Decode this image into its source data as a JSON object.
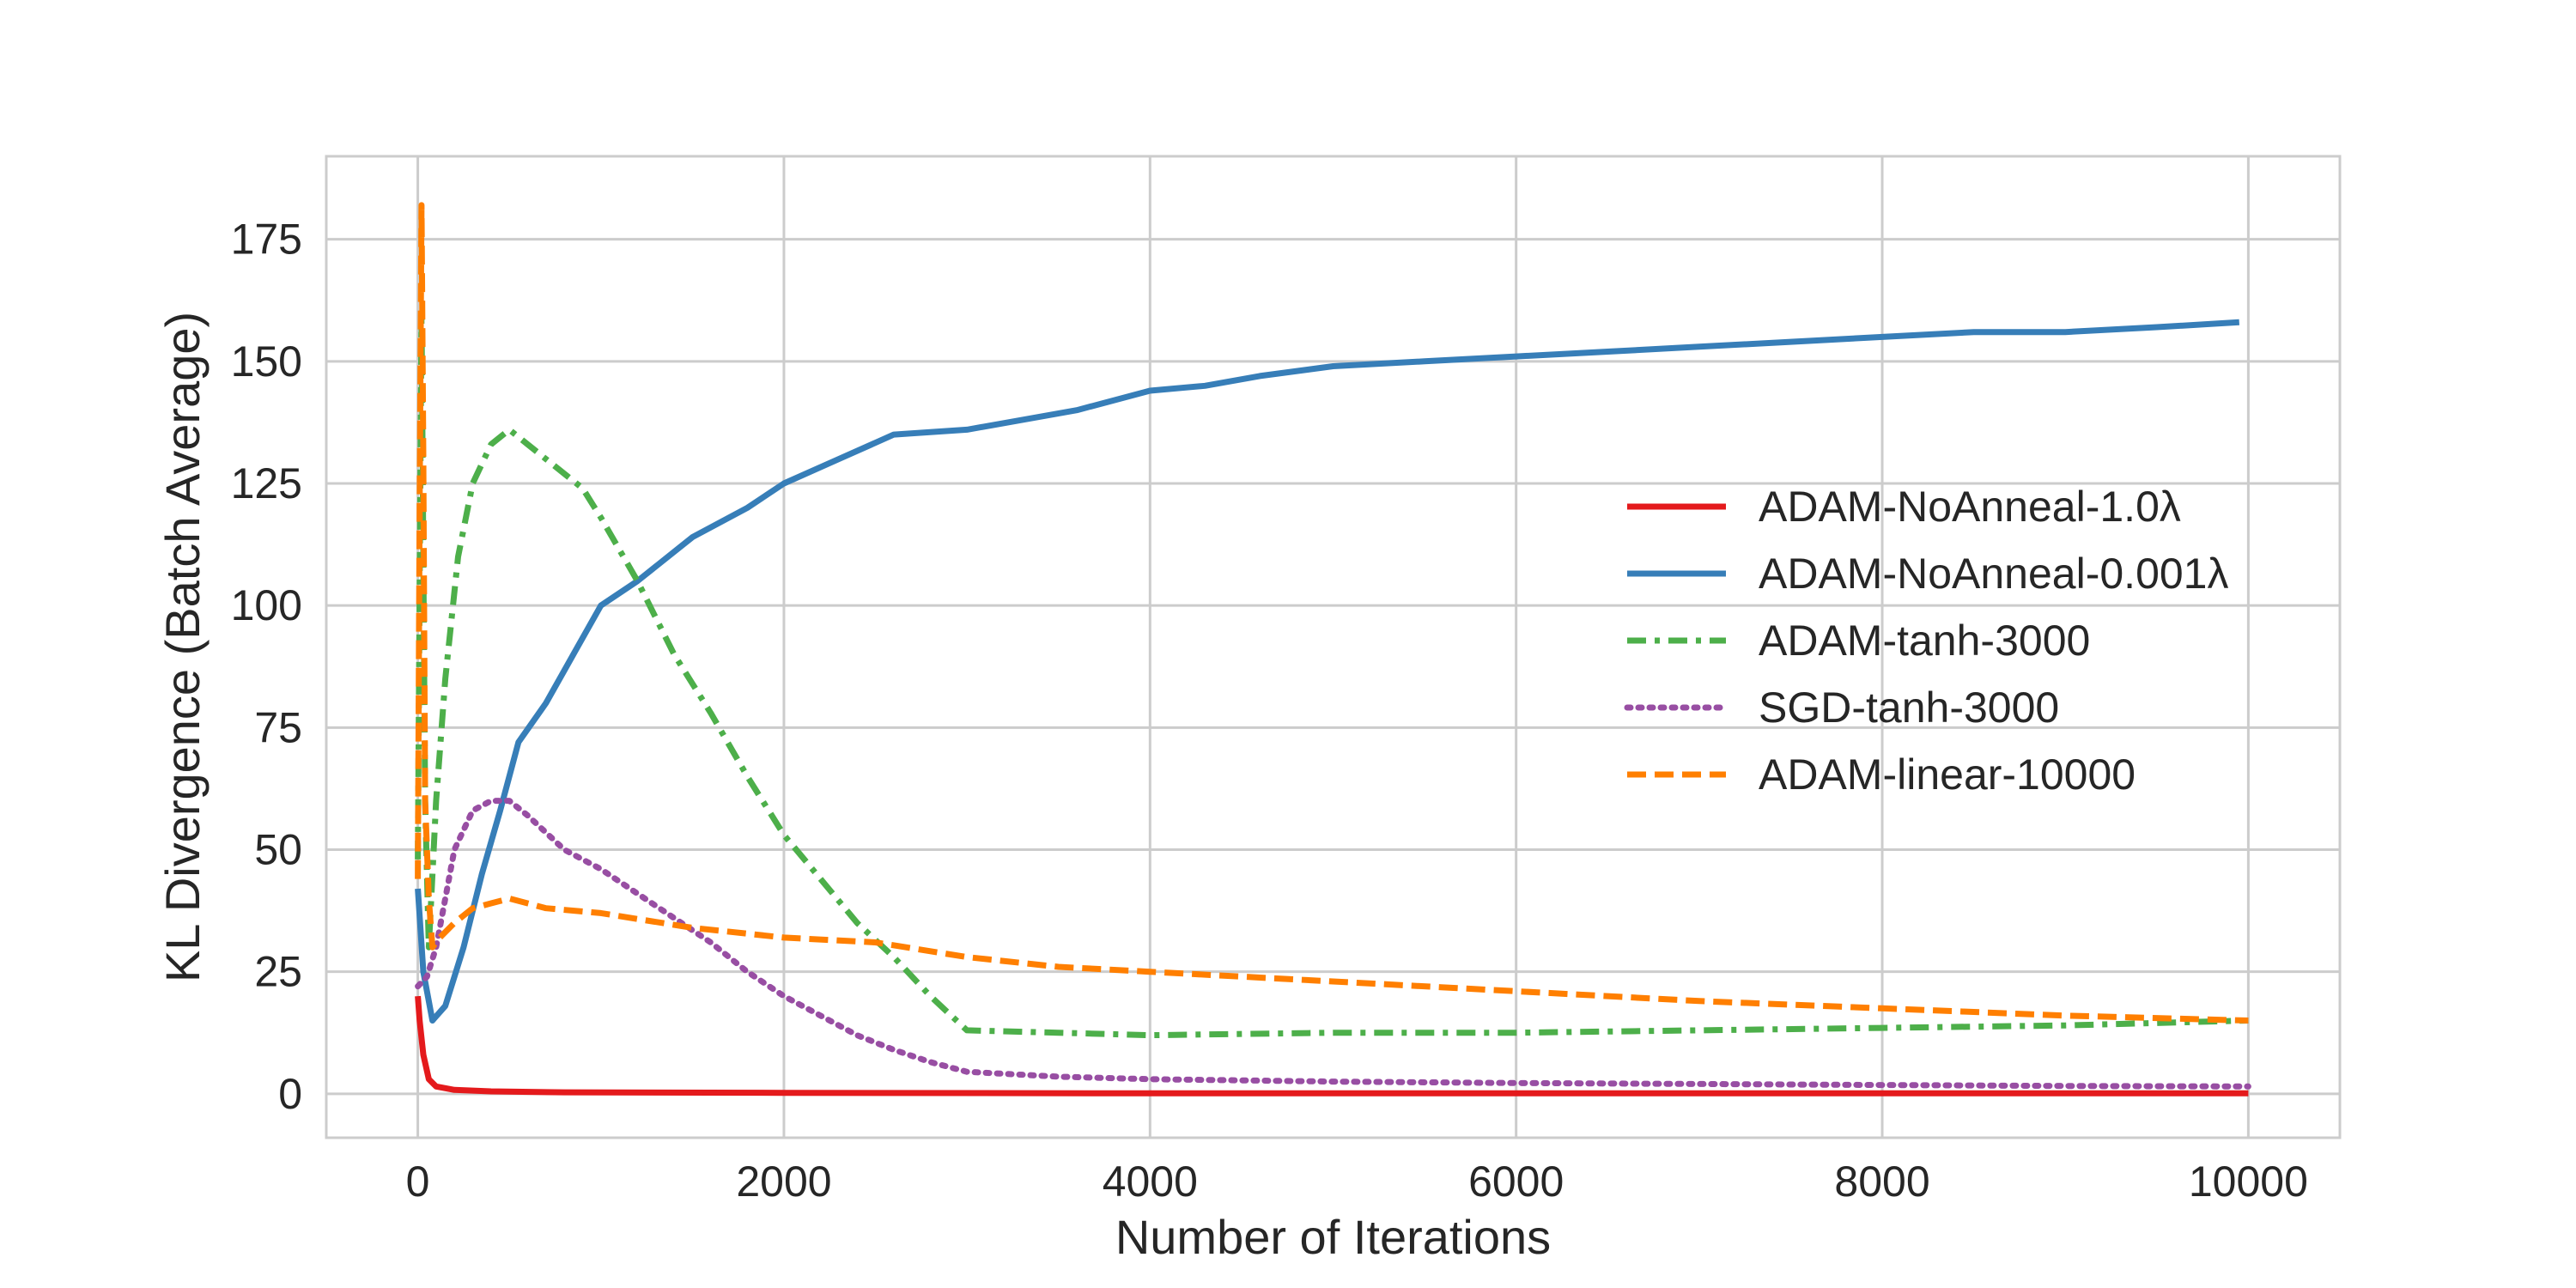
{
  "chart_data": {
    "type": "line",
    "title": "",
    "xlabel": "Number of Iterations",
    "ylabel": "KL Divergence (Batch Average)",
    "xlim": [
      -500,
      10500
    ],
    "ylim": [
      -9,
      192
    ],
    "xticks": [
      0,
      2000,
      4000,
      6000,
      8000,
      10000
    ],
    "yticks": [
      0,
      25,
      50,
      75,
      100,
      125,
      150,
      175
    ],
    "grid": true,
    "legend_position": "center-right",
    "series": [
      {
        "name": "ADAM-NoAnneal-1.0λ",
        "color": "#e41a1c",
        "style": "solid",
        "points": [
          [
            0,
            20
          ],
          [
            10,
            15
          ],
          [
            30,
            8
          ],
          [
            60,
            3
          ],
          [
            100,
            1.5
          ],
          [
            200,
            0.8
          ],
          [
            400,
            0.5
          ],
          [
            800,
            0.3
          ],
          [
            2000,
            0.2
          ],
          [
            4000,
            0.1
          ],
          [
            6000,
            0.1
          ],
          [
            8000,
            0.1
          ],
          [
            10000,
            0.1
          ]
        ]
      },
      {
        "name": "ADAM-NoAnneal-0.001λ",
        "color": "#377eb8",
        "style": "solid",
        "points": [
          [
            0,
            42
          ],
          [
            30,
            25
          ],
          [
            80,
            15
          ],
          [
            150,
            18
          ],
          [
            250,
            30
          ],
          [
            350,
            45
          ],
          [
            450,
            58
          ],
          [
            550,
            72
          ],
          [
            700,
            80
          ],
          [
            850,
            90
          ],
          [
            1000,
            100
          ],
          [
            1200,
            105
          ],
          [
            1500,
            114
          ],
          [
            1800,
            120
          ],
          [
            2000,
            125
          ],
          [
            2300,
            130
          ],
          [
            2600,
            135
          ],
          [
            3000,
            136
          ],
          [
            3300,
            138
          ],
          [
            3600,
            140
          ],
          [
            4000,
            144
          ],
          [
            4300,
            145
          ],
          [
            4600,
            147
          ],
          [
            5000,
            149
          ],
          [
            5500,
            150
          ],
          [
            6000,
            151
          ],
          [
            6500,
            152
          ],
          [
            7000,
            153
          ],
          [
            7500,
            154
          ],
          [
            8000,
            155
          ],
          [
            8500,
            156
          ],
          [
            9000,
            156
          ],
          [
            9500,
            157
          ],
          [
            9950,
            158
          ]
        ]
      },
      {
        "name": "ADAM-tanh-3000",
        "color": "#4daf4a",
        "style": "dashdot",
        "points": [
          [
            0,
            48
          ],
          [
            20,
            160
          ],
          [
            40,
            60
          ],
          [
            60,
            30
          ],
          [
            100,
            60
          ],
          [
            150,
            85
          ],
          [
            220,
            110
          ],
          [
            300,
            125
          ],
          [
            400,
            133
          ],
          [
            500,
            136
          ],
          [
            600,
            133
          ],
          [
            700,
            130
          ],
          [
            800,
            127
          ],
          [
            900,
            124
          ],
          [
            1000,
            118
          ],
          [
            1200,
            105
          ],
          [
            1400,
            90
          ],
          [
            1600,
            78
          ],
          [
            1800,
            65
          ],
          [
            2000,
            53
          ],
          [
            2200,
            44
          ],
          [
            2400,
            35
          ],
          [
            2600,
            28
          ],
          [
            2800,
            20
          ],
          [
            3000,
            13
          ],
          [
            3500,
            12.5
          ],
          [
            4000,
            12
          ],
          [
            5000,
            12.5
          ],
          [
            6000,
            12.5
          ],
          [
            7000,
            13
          ],
          [
            8000,
            13.5
          ],
          [
            9000,
            14
          ],
          [
            10000,
            15
          ]
        ]
      },
      {
        "name": "SGD-tanh-3000",
        "color": "#984ea3",
        "style": "dotted",
        "points": [
          [
            0,
            22
          ],
          [
            50,
            24
          ],
          [
            100,
            30
          ],
          [
            150,
            40
          ],
          [
            200,
            50
          ],
          [
            300,
            58
          ],
          [
            400,
            60
          ],
          [
            500,
            60
          ],
          [
            600,
            57
          ],
          [
            800,
            50
          ],
          [
            1000,
            46
          ],
          [
            1200,
            41
          ],
          [
            1400,
            36
          ],
          [
            1600,
            31
          ],
          [
            1800,
            25
          ],
          [
            2000,
            20
          ],
          [
            2200,
            16
          ],
          [
            2400,
            12
          ],
          [
            2600,
            9
          ],
          [
            2800,
            6.5
          ],
          [
            3000,
            4.5
          ],
          [
            3500,
            3.5
          ],
          [
            4000,
            3
          ],
          [
            5000,
            2.5
          ],
          [
            6000,
            2.2
          ],
          [
            7000,
            2
          ],
          [
            8000,
            1.8
          ],
          [
            9000,
            1.6
          ],
          [
            10000,
            1.5
          ]
        ]
      },
      {
        "name": "ADAM-linear-10000",
        "color": "#ff7f00",
        "style": "dashed",
        "points": [
          [
            0,
            44
          ],
          [
            10,
            120
          ],
          [
            20,
            182
          ],
          [
            30,
            130
          ],
          [
            40,
            60
          ],
          [
            60,
            40
          ],
          [
            80,
            30
          ],
          [
            120,
            32
          ],
          [
            200,
            35
          ],
          [
            300,
            38
          ],
          [
            400,
            39
          ],
          [
            500,
            40
          ],
          [
            700,
            38
          ],
          [
            1000,
            37
          ],
          [
            1500,
            34
          ],
          [
            2000,
            32
          ],
          [
            2500,
            31
          ],
          [
            3000,
            28
          ],
          [
            3500,
            26
          ],
          [
            4000,
            25
          ],
          [
            5000,
            23
          ],
          [
            6000,
            21
          ],
          [
            7000,
            19
          ],
          [
            8000,
            17.5
          ],
          [
            9000,
            16
          ],
          [
            10000,
            15
          ]
        ]
      }
    ]
  }
}
